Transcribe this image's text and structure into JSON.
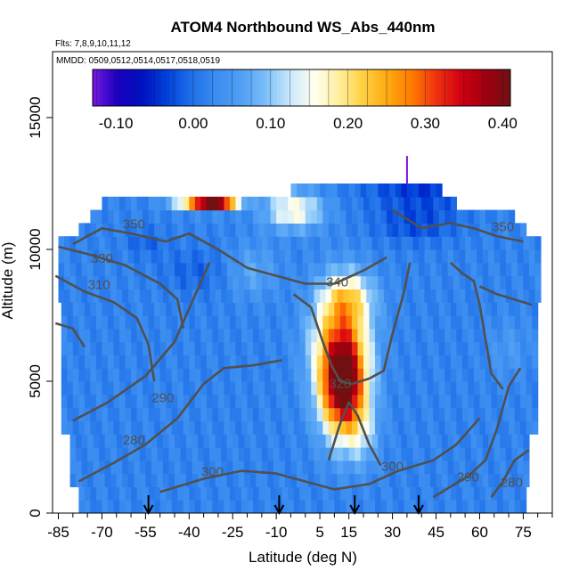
{
  "chart_data": {
    "type": "heatmap",
    "title": "ATOM4 Northbound WS_Abs_440nm",
    "subtitle_flights": "Flts: 7,8,9,10,11,12",
    "subtitle_dates": "MMDD: 0509,0512,0514,0517,0518,0519",
    "xlabel": "Latitude (deg N)",
    "ylabel": "Altitude (m)",
    "xlim": [
      -87,
      85
    ],
    "ylim": [
      0,
      17500
    ],
    "x_ticks": [
      -85,
      -70,
      -55,
      -40,
      -25,
      -10,
      5,
      15,
      30,
      45,
      60,
      75
    ],
    "x_tick_labels": [
      "-85",
      "-70",
      "-55",
      "-40",
      "-25",
      "-10",
      "5",
      "15",
      "30",
      "45",
      "60",
      "75"
    ],
    "y_ticks": [
      0,
      5000,
      10000,
      15000
    ],
    "y_tick_labels": [
      "0",
      "5000",
      "10000",
      "15000"
    ],
    "colorbar": {
      "ticks": [
        -0.1,
        0.0,
        0.1,
        0.2,
        0.3,
        0.4
      ],
      "tick_labels": [
        "-0.10",
        "0.00",
        "0.10",
        "0.20",
        "0.30",
        "0.40"
      ],
      "min": -0.13,
      "max": 0.41,
      "colors": [
        "#7a18e0",
        "#1a00c0",
        "#0010c0",
        "#0040d8",
        "#1e6fe8",
        "#3a8cf0",
        "#4f9ef4",
        "#78bdf8",
        "#c8e8fc",
        "#fffff0",
        "#fff0a0",
        "#ffd040",
        "#ffaa10",
        "#ff7a00",
        "#f03010",
        "#d00010",
        "#a00010",
        "#701010"
      ]
    },
    "contour_labels": [
      {
        "text": "350",
        "x": -59,
        "y": 10800
      },
      {
        "text": "330",
        "x": -70,
        "y": 9500
      },
      {
        "text": "310",
        "x": -71,
        "y": 8500
      },
      {
        "text": "340",
        "x": 11,
        "y": 8600
      },
      {
        "text": "320",
        "x": 12,
        "y": 4750
      },
      {
        "text": "290",
        "x": -49,
        "y": 4200
      },
      {
        "text": "280",
        "x": -59,
        "y": 2600
      },
      {
        "text": "300",
        "x": -32,
        "y": 1400
      },
      {
        "text": "300",
        "x": 30,
        "y": 1600
      },
      {
        "text": "290",
        "x": 56,
        "y": 1200
      },
      {
        "text": "280",
        "x": 71,
        "y": 1000
      },
      {
        "text": "350",
        "x": 68,
        "y": 10700
      }
    ],
    "arrows_lat": [
      -54,
      -9,
      17,
      39
    ],
    "marker_lat": 35,
    "marker_alt": 12800
  }
}
